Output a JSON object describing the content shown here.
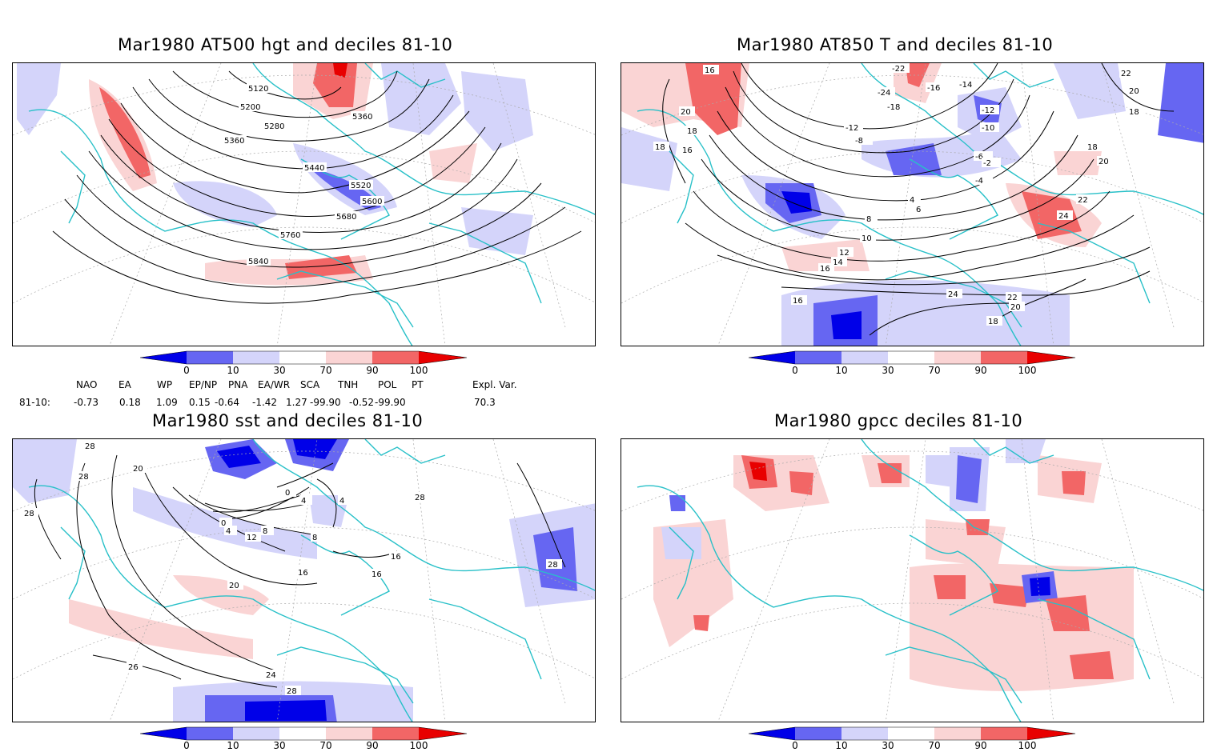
{
  "colors": {
    "d0": "#0000e8",
    "d10": "#6666f2",
    "d30": "#d4d4fa",
    "d70": "#fad4d4",
    "d90": "#f26666",
    "d100": "#e80000",
    "coast": "#28c0c8",
    "contour": "#000000"
  },
  "panels": [
    {
      "id": "p1",
      "title": "Mar1980 AT500 hgt and deciles 81-10",
      "contour_labels": [
        "5120",
        "5200",
        "5280",
        "5360",
        "5360",
        "5440",
        "5520",
        "5600",
        "5680",
        "5760",
        "5840"
      ]
    },
    {
      "id": "p2",
      "title": "Mar1980 AT850 T and deciles 81-10",
      "contour_labels": [
        "16",
        "20",
        "18",
        "16",
        "18",
        "-22",
        "-24",
        "-18",
        "-16",
        "-14",
        "-12",
        "-12",
        "-10",
        "-8",
        "-6",
        "-4",
        "-2",
        "22",
        "20",
        "18",
        "18",
        "20",
        "22",
        "24",
        "4",
        "6",
        "8",
        "10",
        "12",
        "14",
        "16",
        "16",
        "24",
        "22",
        "20",
        "18"
      ]
    },
    {
      "id": "p3",
      "title": "Mar1980 sst and deciles 81-10",
      "contour_labels": [
        "28",
        "28",
        "28",
        "20",
        "0",
        "4",
        "8",
        "12",
        "16",
        "20",
        "24",
        "28",
        "0",
        "4",
        "4",
        "8",
        "16",
        "16",
        "28",
        "28",
        "26"
      ]
    },
    {
      "id": "p4",
      "title": "Mar1980 gpcc deciles 81-10",
      "contour_labels": []
    }
  ],
  "colorbar": {
    "ticks": [
      "0",
      "10",
      "30",
      "70",
      "90",
      "100"
    ]
  },
  "indices": {
    "headers": [
      "NAO",
      "EA",
      "WP",
      "EP/NP",
      "PNA",
      "EA/WR",
      "SCA",
      "TNH",
      "POL",
      "PT",
      "Expl. Var."
    ],
    "row_label": "81-10:",
    "values": [
      "-0.73",
      "0.18",
      "1.09",
      "0.15",
      "-0.64",
      "-1.42",
      "1.27",
      "-99.90",
      "-0.52",
      "-99.90",
      "70.3"
    ]
  }
}
